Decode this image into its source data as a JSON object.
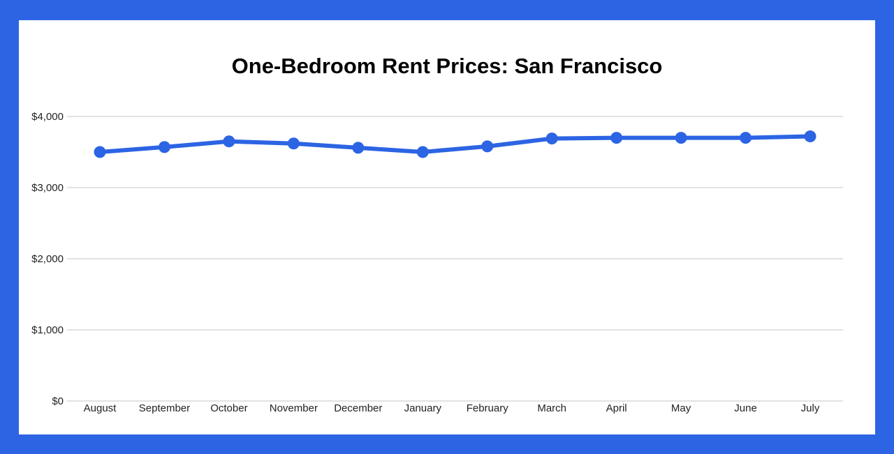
{
  "chart_data": {
    "type": "line",
    "title": "One-Bedroom Rent Prices: San Francisco",
    "xlabel": "",
    "ylabel": "",
    "categories": [
      "August",
      "September",
      "October",
      "November",
      "December",
      "January",
      "February",
      "March",
      "April",
      "May",
      "June",
      "July"
    ],
    "series": [
      {
        "values": [
          3500,
          3570,
          3650,
          3620,
          3560,
          3500,
          3580,
          3690,
          3700,
          3700,
          3700,
          3720
        ],
        "color": "#2c64e3"
      }
    ],
    "ylim": [
      0,
      4000
    ],
    "yticks": [
      0,
      1000,
      2000,
      3000,
      4000
    ],
    "ytick_labels": [
      "$0",
      "$1,000",
      "$2,000",
      "$3,000",
      "$4,000"
    ],
    "grid": true,
    "legend": "none"
  },
  "colors": {
    "border": "#2c64e3",
    "background": "#ffffff",
    "gridline": "#d9d9d9",
    "line": "#2c64e3"
  }
}
